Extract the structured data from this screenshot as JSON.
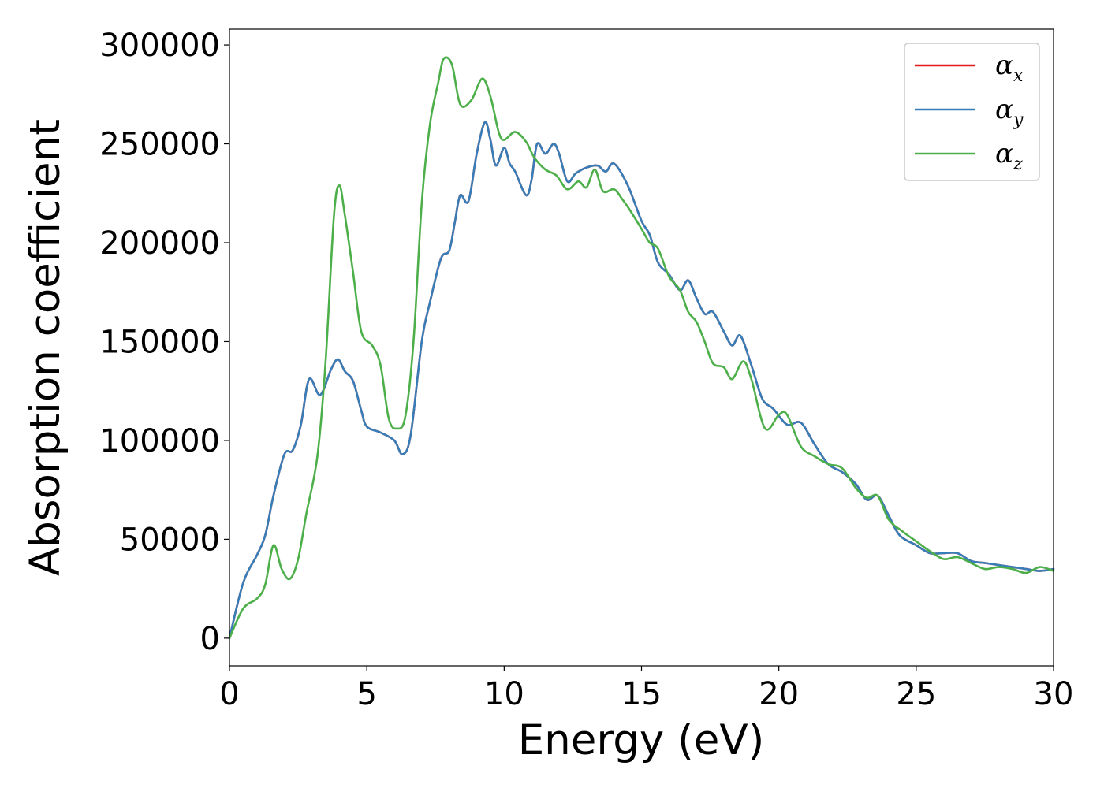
{
  "chart_data": {
    "type": "line",
    "title": "",
    "xlabel": "Energy (eV)",
    "ylabel": "Absorption coefficient",
    "xlim": [
      0,
      30
    ],
    "ylim": [
      -14000,
      308000
    ],
    "x_ticks": [
      0,
      5,
      10,
      15,
      20,
      25,
      30
    ],
    "y_ticks": [
      0,
      50000,
      100000,
      150000,
      200000,
      250000,
      300000
    ],
    "grid": false,
    "legend_position": "top-right",
    "series": [
      {
        "name": "α_x",
        "legend_symbol": "α",
        "legend_subscript": "x",
        "color": "#e41a1c",
        "points": [
          [
            0,
            0
          ],
          [
            0.5,
            28000
          ],
          [
            1.0,
            42000
          ],
          [
            1.3,
            52000
          ],
          [
            1.6,
            72000
          ],
          [
            2.0,
            93000
          ],
          [
            2.3,
            95000
          ],
          [
            2.6,
            108000
          ],
          [
            2.9,
            131000
          ],
          [
            3.3,
            123000
          ],
          [
            3.7,
            136000
          ],
          [
            3.95,
            141000
          ],
          [
            4.2,
            135000
          ],
          [
            4.5,
            130000
          ],
          [
            4.8,
            115000
          ],
          [
            5.0,
            107000
          ],
          [
            5.5,
            104000
          ],
          [
            6.0,
            100000
          ],
          [
            6.3,
            93000
          ],
          [
            6.6,
            103000
          ],
          [
            7.0,
            150000
          ],
          [
            7.3,
            170000
          ],
          [
            7.7,
            192000
          ],
          [
            8.0,
            196000
          ],
          [
            8.2,
            210000
          ],
          [
            8.4,
            224000
          ],
          [
            8.7,
            221000
          ],
          [
            9.0,
            245000
          ],
          [
            9.3,
            261000
          ],
          [
            9.5,
            252000
          ],
          [
            9.7,
            239000
          ],
          [
            10.0,
            248000
          ],
          [
            10.2,
            240000
          ],
          [
            10.4,
            236000
          ],
          [
            10.8,
            224000
          ],
          [
            11.0,
            232000
          ],
          [
            11.2,
            250000
          ],
          [
            11.5,
            245000
          ],
          [
            11.8,
            250000
          ],
          [
            12.0,
            245000
          ],
          [
            12.3,
            231000
          ],
          [
            12.6,
            235000
          ],
          [
            13.0,
            238000
          ],
          [
            13.4,
            239000
          ],
          [
            13.7,
            236000
          ],
          [
            14.0,
            240000
          ],
          [
            14.5,
            229000
          ],
          [
            15.0,
            211000
          ],
          [
            15.3,
            204000
          ],
          [
            15.6,
            190000
          ],
          [
            16.0,
            184000
          ],
          [
            16.4,
            176000
          ],
          [
            16.7,
            181000
          ],
          [
            17.0,
            172000
          ],
          [
            17.3,
            164000
          ],
          [
            17.6,
            165000
          ],
          [
            18.0,
            155000
          ],
          [
            18.3,
            148000
          ],
          [
            18.6,
            153000
          ],
          [
            19.0,
            138000
          ],
          [
            19.4,
            121000
          ],
          [
            19.8,
            116000
          ],
          [
            20.3,
            108000
          ],
          [
            20.8,
            109000
          ],
          [
            21.3,
            98000
          ],
          [
            21.8,
            88000
          ],
          [
            22.3,
            84000
          ],
          [
            22.8,
            78000
          ],
          [
            23.2,
            70000
          ],
          [
            23.6,
            72000
          ],
          [
            24.0,
            62000
          ],
          [
            24.4,
            52000
          ],
          [
            25.0,
            47000
          ],
          [
            25.5,
            43000
          ],
          [
            26.0,
            43000
          ],
          [
            26.5,
            43000
          ],
          [
            27.0,
            39000
          ],
          [
            27.5,
            38000
          ],
          [
            28.0,
            37000
          ],
          [
            28.5,
            36000
          ],
          [
            29.0,
            35000
          ],
          [
            29.5,
            34000
          ],
          [
            30.0,
            35000
          ]
        ]
      },
      {
        "name": "α_y",
        "legend_symbol": "α",
        "legend_subscript": "y",
        "color": "#377eb8",
        "points": [
          [
            0,
            0
          ],
          [
            0.5,
            28000
          ],
          [
            1.0,
            42000
          ],
          [
            1.3,
            52000
          ],
          [
            1.6,
            72000
          ],
          [
            2.0,
            93000
          ],
          [
            2.3,
            95000
          ],
          [
            2.6,
            108000
          ],
          [
            2.9,
            131000
          ],
          [
            3.3,
            123000
          ],
          [
            3.7,
            136000
          ],
          [
            3.95,
            141000
          ],
          [
            4.2,
            135000
          ],
          [
            4.5,
            130000
          ],
          [
            4.8,
            115000
          ],
          [
            5.0,
            107000
          ],
          [
            5.5,
            104000
          ],
          [
            6.0,
            100000
          ],
          [
            6.3,
            93000
          ],
          [
            6.6,
            103000
          ],
          [
            7.0,
            150000
          ],
          [
            7.3,
            170000
          ],
          [
            7.7,
            192000
          ],
          [
            8.0,
            196000
          ],
          [
            8.2,
            210000
          ],
          [
            8.4,
            224000
          ],
          [
            8.7,
            221000
          ],
          [
            9.0,
            245000
          ],
          [
            9.3,
            261000
          ],
          [
            9.5,
            252000
          ],
          [
            9.7,
            239000
          ],
          [
            10.0,
            248000
          ],
          [
            10.2,
            240000
          ],
          [
            10.4,
            236000
          ],
          [
            10.8,
            224000
          ],
          [
            11.0,
            232000
          ],
          [
            11.2,
            250000
          ],
          [
            11.5,
            245000
          ],
          [
            11.8,
            250000
          ],
          [
            12.0,
            245000
          ],
          [
            12.3,
            231000
          ],
          [
            12.6,
            235000
          ],
          [
            13.0,
            238000
          ],
          [
            13.4,
            239000
          ],
          [
            13.7,
            236000
          ],
          [
            14.0,
            240000
          ],
          [
            14.5,
            229000
          ],
          [
            15.0,
            211000
          ],
          [
            15.3,
            204000
          ],
          [
            15.6,
            190000
          ],
          [
            16.0,
            184000
          ],
          [
            16.4,
            176000
          ],
          [
            16.7,
            181000
          ],
          [
            17.0,
            172000
          ],
          [
            17.3,
            164000
          ],
          [
            17.6,
            165000
          ],
          [
            18.0,
            155000
          ],
          [
            18.3,
            148000
          ],
          [
            18.6,
            153000
          ],
          [
            19.0,
            138000
          ],
          [
            19.4,
            121000
          ],
          [
            19.8,
            116000
          ],
          [
            20.3,
            108000
          ],
          [
            20.8,
            109000
          ],
          [
            21.3,
            98000
          ],
          [
            21.8,
            88000
          ],
          [
            22.3,
            84000
          ],
          [
            22.8,
            78000
          ],
          [
            23.2,
            70000
          ],
          [
            23.6,
            72000
          ],
          [
            24.0,
            62000
          ],
          [
            24.4,
            52000
          ],
          [
            25.0,
            47000
          ],
          [
            25.5,
            43000
          ],
          [
            26.0,
            43000
          ],
          [
            26.5,
            43000
          ],
          [
            27.0,
            39000
          ],
          [
            27.5,
            38000
          ],
          [
            28.0,
            37000
          ],
          [
            28.5,
            36000
          ],
          [
            29.0,
            35000
          ],
          [
            29.5,
            34000
          ],
          [
            30.0,
            35000
          ]
        ]
      },
      {
        "name": "α_z",
        "legend_symbol": "α",
        "legend_subscript": "z",
        "color": "#4daf4a",
        "points": [
          [
            0,
            0
          ],
          [
            0.5,
            15000
          ],
          [
            1.0,
            20000
          ],
          [
            1.3,
            27000
          ],
          [
            1.6,
            47000
          ],
          [
            1.9,
            35000
          ],
          [
            2.2,
            30000
          ],
          [
            2.5,
            40000
          ],
          [
            2.8,
            63000
          ],
          [
            3.2,
            92000
          ],
          [
            3.5,
            140000
          ],
          [
            3.8,
            213000
          ],
          [
            4.0,
            229000
          ],
          [
            4.2,
            214000
          ],
          [
            4.5,
            185000
          ],
          [
            4.8,
            155000
          ],
          [
            5.2,
            148000
          ],
          [
            5.5,
            138000
          ],
          [
            5.8,
            111000
          ],
          [
            6.1,
            106000
          ],
          [
            6.4,
            112000
          ],
          [
            6.7,
            150000
          ],
          [
            7.0,
            220000
          ],
          [
            7.3,
            260000
          ],
          [
            7.6,
            281000
          ],
          [
            7.8,
            293000
          ],
          [
            8.1,
            290000
          ],
          [
            8.4,
            270000
          ],
          [
            8.8,
            272000
          ],
          [
            9.2,
            283000
          ],
          [
            9.5,
            274000
          ],
          [
            9.8,
            256000
          ],
          [
            10.0,
            252000
          ],
          [
            10.4,
            256000
          ],
          [
            10.8,
            251000
          ],
          [
            11.1,
            243000
          ],
          [
            11.5,
            237000
          ],
          [
            11.9,
            234000
          ],
          [
            12.3,
            227000
          ],
          [
            12.7,
            231000
          ],
          [
            13.0,
            228000
          ],
          [
            13.3,
            237000
          ],
          [
            13.6,
            226000
          ],
          [
            14.0,
            227000
          ],
          [
            14.3,
            222000
          ],
          [
            14.6,
            216000
          ],
          [
            15.0,
            207000
          ],
          [
            15.3,
            200000
          ],
          [
            15.6,
            197000
          ],
          [
            16.0,
            183000
          ],
          [
            16.4,
            176000
          ],
          [
            16.7,
            165000
          ],
          [
            17.0,
            160000
          ],
          [
            17.3,
            150000
          ],
          [
            17.6,
            139000
          ],
          [
            18.0,
            137000
          ],
          [
            18.3,
            131000
          ],
          [
            18.7,
            140000
          ],
          [
            19.0,
            131000
          ],
          [
            19.5,
            106000
          ],
          [
            20.0,
            113000
          ],
          [
            20.3,
            113000
          ],
          [
            20.8,
            97000
          ],
          [
            21.3,
            92000
          ],
          [
            21.8,
            88000
          ],
          [
            22.3,
            86000
          ],
          [
            22.8,
            76000
          ],
          [
            23.2,
            71000
          ],
          [
            23.6,
            72000
          ],
          [
            24.0,
            60000
          ],
          [
            24.5,
            54000
          ],
          [
            25.0,
            49000
          ],
          [
            25.5,
            44000
          ],
          [
            26.0,
            40000
          ],
          [
            26.5,
            41000
          ],
          [
            27.0,
            38000
          ],
          [
            27.5,
            35000
          ],
          [
            28.0,
            36000
          ],
          [
            28.5,
            35000
          ],
          [
            29.0,
            33000
          ],
          [
            29.5,
            36000
          ],
          [
            30.0,
            34000
          ]
        ]
      }
    ]
  }
}
